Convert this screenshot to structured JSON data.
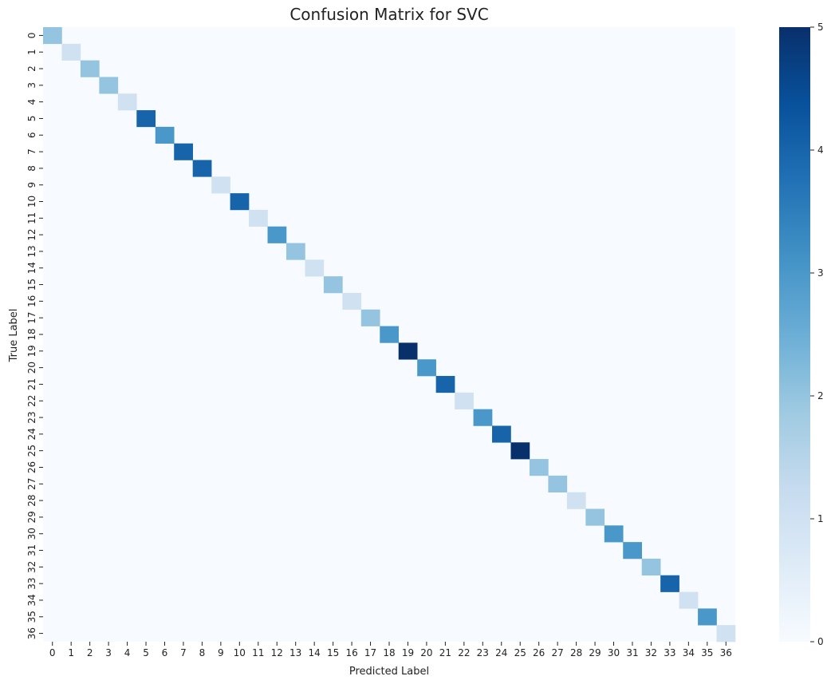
{
  "chart_data": {
    "type": "heatmap",
    "title": "Confusion Matrix for SVC",
    "xlabel": "Predicted Label",
    "ylabel": "True Label",
    "x_categories": [
      "0",
      "1",
      "2",
      "3",
      "4",
      "5",
      "6",
      "7",
      "8",
      "9",
      "10",
      "11",
      "12",
      "13",
      "14",
      "15",
      "16",
      "17",
      "18",
      "19",
      "20",
      "21",
      "22",
      "23",
      "24",
      "25",
      "26",
      "27",
      "28",
      "29",
      "30",
      "31",
      "32",
      "33",
      "34",
      "35",
      "36"
    ],
    "y_categories": [
      "0",
      "1",
      "2",
      "3",
      "4",
      "5",
      "6",
      "7",
      "8",
      "9",
      "10",
      "11",
      "12",
      "13",
      "14",
      "15",
      "16",
      "17",
      "18",
      "19",
      "20",
      "21",
      "22",
      "23",
      "24",
      "25",
      "26",
      "27",
      "28",
      "29",
      "30",
      "31",
      "32",
      "33",
      "34",
      "35",
      "36"
    ],
    "diagonal_values": [
      2,
      1,
      2,
      2,
      1,
      4,
      3,
      4,
      4,
      1,
      4,
      1,
      3,
      2,
      1,
      2,
      1,
      2,
      3,
      5,
      3,
      4,
      1,
      3,
      4,
      5,
      2,
      2,
      1,
      2,
      3,
      3,
      2,
      4,
      1,
      3,
      1
    ],
    "off_diagonal_value": 0,
    "colormap": "Blues",
    "colorbar": {
      "min": 0,
      "max": 5,
      "ticks": [
        "0",
        "1",
        "2",
        "3",
        "4",
        "5"
      ]
    }
  }
}
